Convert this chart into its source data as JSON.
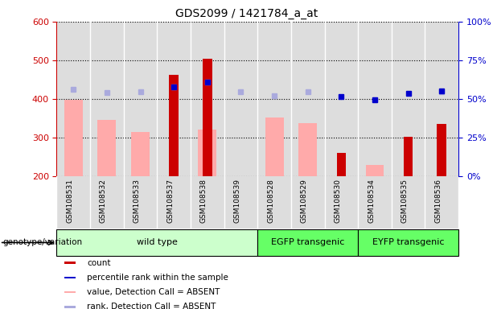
{
  "title": "GDS2099 / 1421784_a_at",
  "samples": [
    "GSM108531",
    "GSM108532",
    "GSM108533",
    "GSM108537",
    "GSM108538",
    "GSM108539",
    "GSM108528",
    "GSM108529",
    "GSM108530",
    "GSM108534",
    "GSM108535",
    "GSM108536"
  ],
  "count_values": [
    null,
    null,
    null,
    463,
    503,
    null,
    null,
    null,
    261,
    null,
    302,
    336
  ],
  "value_absent": [
    397,
    345,
    314,
    null,
    321,
    null,
    351,
    337,
    null,
    228,
    null,
    null
  ],
  "rank_absent_left": [
    424,
    416,
    418,
    430,
    443,
    418,
    408,
    419,
    null,
    398,
    null,
    419
  ],
  "percentile_rank_left": [
    null,
    null,
    null,
    432,
    444,
    null,
    null,
    null,
    407,
    397,
    415,
    420
  ],
  "groups": [
    {
      "label": "wild type",
      "start": 0,
      "end": 6,
      "color": "#ccffcc"
    },
    {
      "label": "EGFP transgenic",
      "start": 6,
      "end": 9,
      "color": "#66ff66"
    },
    {
      "label": "EYFP transgenic",
      "start": 9,
      "end": 12,
      "color": "#66ff66"
    }
  ],
  "ylim_left": [
    200,
    600
  ],
  "ylim_right": [
    0,
    100
  ],
  "yticks_left": [
    200,
    300,
    400,
    500,
    600
  ],
  "yticks_right": [
    0,
    25,
    50,
    75,
    100
  ],
  "ytick_labels_right": [
    "0%",
    "25%",
    "50%",
    "75%",
    "100%"
  ],
  "count_color": "#cc0000",
  "value_absent_color": "#ffaaaa",
  "rank_absent_color": "#aaaadd",
  "percentile_rank_color": "#0000cc",
  "left_axis_color": "#cc0000",
  "right_axis_color": "#0000cc",
  "plot_bg": "#dddddd",
  "legend_items": [
    {
      "color": "#cc0000",
      "label": "count"
    },
    {
      "color": "#0000cc",
      "label": "percentile rank within the sample"
    },
    {
      "color": "#ffaaaa",
      "label": "value, Detection Call = ABSENT"
    },
    {
      "color": "#aaaadd",
      "label": "rank, Detection Call = ABSENT"
    }
  ]
}
